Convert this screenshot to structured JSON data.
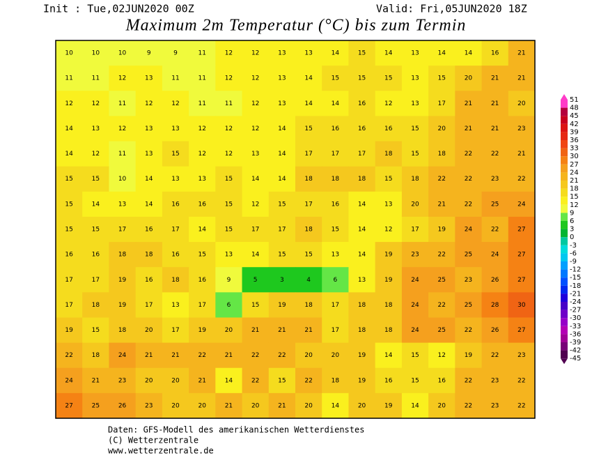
{
  "header": {
    "init": "Init : Tue,02JUN2020 00Z",
    "valid": "Valid: Fri,05JUN2020 18Z",
    "title": "Maximum 2m Temperatur (°C) bis zum Termin"
  },
  "map": {
    "rows": [
      [
        10,
        10,
        10,
        9,
        9,
        11,
        12,
        12,
        13,
        13,
        14,
        15,
        14,
        13,
        14,
        14,
        16,
        21
      ],
      [
        11,
        11,
        12,
        13,
        11,
        11,
        12,
        12,
        13,
        14,
        15,
        15,
        15,
        13,
        15,
        20,
        21,
        21
      ],
      [
        12,
        12,
        11,
        12,
        12,
        11,
        11,
        12,
        13,
        14,
        14,
        16,
        12,
        13,
        17,
        21,
        21,
        20
      ],
      [
        14,
        13,
        12,
        13,
        13,
        12,
        12,
        12,
        14,
        15,
        16,
        16,
        16,
        15,
        20,
        21,
        21,
        23
      ],
      [
        14,
        12,
        11,
        13,
        15,
        12,
        12,
        13,
        14,
        17,
        17,
        17,
        18,
        15,
        18,
        22,
        22,
        21
      ],
      [
        15,
        15,
        10,
        14,
        13,
        13,
        15,
        14,
        14,
        18,
        18,
        18,
        15,
        18,
        22,
        22,
        23,
        22
      ],
      [
        15,
        14,
        13,
        14,
        16,
        16,
        15,
        12,
        15,
        17,
        16,
        14,
        13,
        20,
        21,
        22,
        25,
        24
      ],
      [
        15,
        15,
        17,
        16,
        17,
        14,
        15,
        17,
        17,
        18,
        15,
        14,
        12,
        17,
        19,
        24,
        22,
        27
      ],
      [
        16,
        16,
        18,
        18,
        16,
        15,
        13,
        14,
        15,
        15,
        13,
        14,
        19,
        23,
        22,
        25,
        24,
        27
      ],
      [
        17,
        17,
        19,
        16,
        18,
        16,
        9,
        5,
        3,
        4,
        6,
        13,
        19,
        24,
        25,
        23,
        26,
        27
      ],
      [
        17,
        18,
        19,
        17,
        13,
        17,
        6,
        15,
        19,
        18,
        17,
        18,
        18,
        24,
        22,
        25,
        28,
        30
      ],
      [
        19,
        15,
        18,
        20,
        17,
        19,
        20,
        21,
        21,
        21,
        17,
        18,
        18,
        24,
        25,
        22,
        26,
        27
      ],
      [
        22,
        18,
        24,
        21,
        21,
        22,
        21,
        22,
        22,
        20,
        20,
        19,
        14,
        15,
        12,
        19,
        22,
        23
      ],
      [
        24,
        21,
        23,
        20,
        20,
        21,
        14,
        22,
        15,
        22,
        18,
        19,
        16,
        15,
        16,
        22,
        23,
        22
      ],
      [
        27,
        25,
        26,
        23,
        20,
        20,
        21,
        20,
        21,
        20,
        14,
        20,
        19,
        14,
        20,
        22,
        23,
        22
      ]
    ]
  },
  "colorbar": {
    "labels": [
      51,
      48,
      45,
      42,
      39,
      36,
      33,
      30,
      27,
      24,
      21,
      18,
      15,
      12,
      9,
      6,
      3,
      0,
      -3,
      -6,
      -9,
      -12,
      -15,
      -18,
      -21,
      -24,
      -27,
      -30,
      -33,
      -36,
      -39,
      -42,
      -45
    ],
    "colors": [
      "#ff3cc8",
      "#b4003c",
      "#c8001e",
      "#dc1414",
      "#e62814",
      "#f04614",
      "#f06414",
      "#f58214",
      "#f5a01e",
      "#f5b41e",
      "#f5c81e",
      "#f5dc1e",
      "#faf01e",
      "#f0fa3c",
      "#64e646",
      "#1ec81e",
      "#00b432",
      "#00c8a0",
      "#00dcdc",
      "#00c8f0",
      "#00a0ff",
      "#0078ff",
      "#0050ff",
      "#0028f0",
      "#1e00dc",
      "#4600c8",
      "#6e00c8",
      "#9600c8",
      "#b400b4",
      "#a00096",
      "#780078",
      "#500050"
    ]
  },
  "footer": {
    "source": "Daten: GFS-Modell des amerikanischen Wetterdienstes",
    "copyright": "(C) Wetterzentrale",
    "url": "www.wetterzentrale.de"
  }
}
